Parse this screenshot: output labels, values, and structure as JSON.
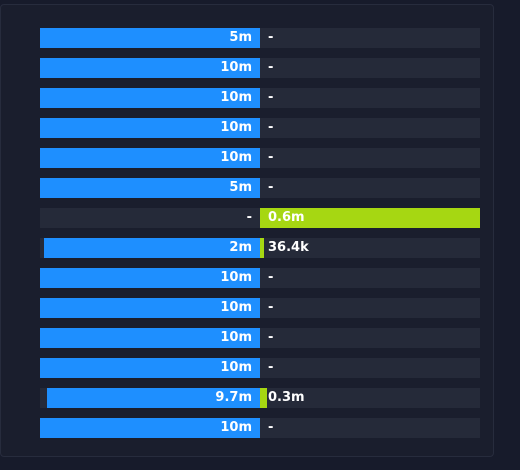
{
  "colors": {
    "blue": "#1e8fff",
    "green": "#a6d712",
    "track": "#252a39"
  },
  "rows": [
    {
      "left_value": 1.0,
      "left_label": "5m",
      "right_value": 0,
      "right_label": "-"
    },
    {
      "left_value": 1.0,
      "left_label": "10m",
      "right_value": 0,
      "right_label": "-"
    },
    {
      "left_value": 1.0,
      "left_label": "10m",
      "right_value": 0,
      "right_label": "-"
    },
    {
      "left_value": 1.0,
      "left_label": "10m",
      "right_value": 0,
      "right_label": "-"
    },
    {
      "left_value": 1.0,
      "left_label": "10m",
      "right_value": 0,
      "right_label": "-"
    },
    {
      "left_value": 1.0,
      "left_label": "5m",
      "right_value": 0,
      "right_label": "-"
    },
    {
      "left_value": 0,
      "left_label": "-",
      "right_value": 1.0,
      "right_label": "0.6m"
    },
    {
      "left_value": 0.982,
      "left_label": "2m",
      "right_value": 0.018,
      "right_label": "36.4k"
    },
    {
      "left_value": 1.0,
      "left_label": "10m",
      "right_value": 0,
      "right_label": "-"
    },
    {
      "left_value": 1.0,
      "left_label": "10m",
      "right_value": 0,
      "right_label": "-"
    },
    {
      "left_value": 1.0,
      "left_label": "10m",
      "right_value": 0,
      "right_label": "-"
    },
    {
      "left_value": 1.0,
      "left_label": "10m",
      "right_value": 0,
      "right_label": "-"
    },
    {
      "left_value": 0.97,
      "left_label": "9.7m",
      "right_value": 0.03,
      "right_label": "0.3m"
    },
    {
      "left_value": 1.0,
      "left_label": "10m",
      "right_value": 0,
      "right_label": "-"
    }
  ]
}
